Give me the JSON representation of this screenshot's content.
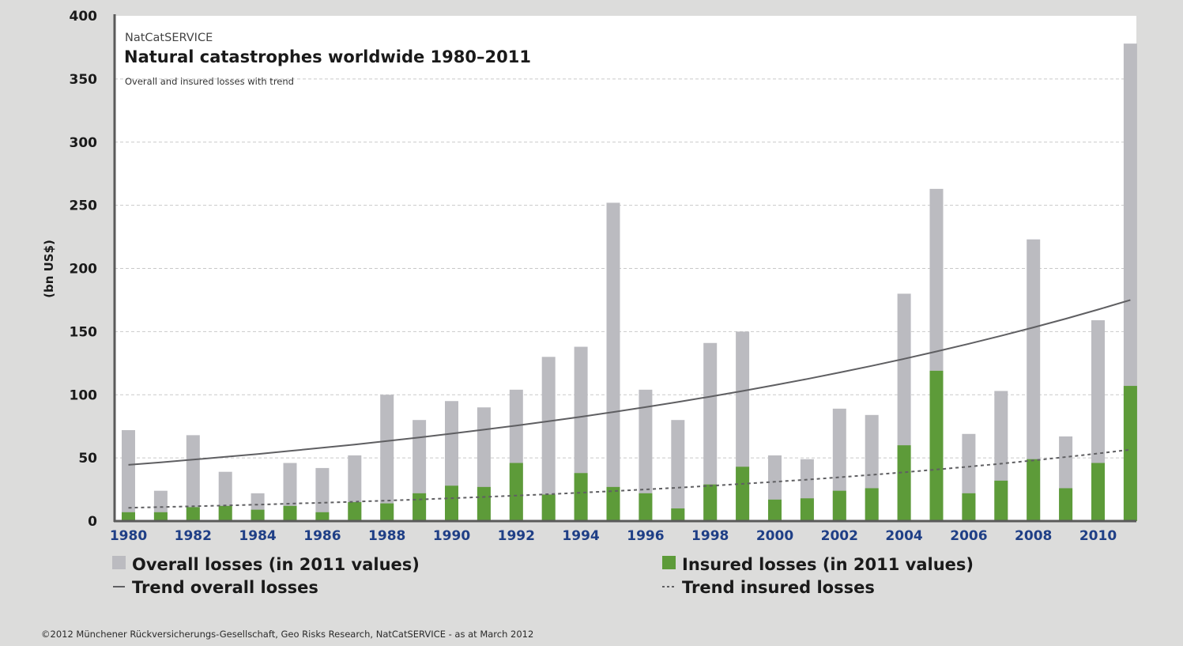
{
  "chart_data": {
    "type": "bar",
    "source_label": "NatCatSERVICE",
    "title": "Natural catastrophes worldwide 1980–2011",
    "subtitle": "Overall and insured losses with trend",
    "ylabel": "(bn US$)",
    "xlabel": "",
    "ylim": [
      0,
      400
    ],
    "yticks": [
      0,
      50,
      100,
      150,
      200,
      250,
      300,
      350,
      400
    ],
    "grid": true,
    "grid_style": "dashed",
    "legend_position": "bottom",
    "x": [
      1980,
      1981,
      1982,
      1983,
      1984,
      1985,
      1986,
      1987,
      1988,
      1989,
      1990,
      1991,
      1992,
      1993,
      1994,
      1995,
      1996,
      1997,
      1998,
      1999,
      2000,
      2001,
      2002,
      2003,
      2004,
      2005,
      2006,
      2007,
      2008,
      2009,
      2010,
      2011
    ],
    "x_tick_labels": [
      "1980",
      "1982",
      "1984",
      "1986",
      "1988",
      "1990",
      "1992",
      "1994",
      "1996",
      "1998",
      "2000",
      "2002",
      "2004",
      "2006",
      "2008",
      "2010"
    ],
    "series": [
      {
        "name": "Overall losses (in 2011 values)",
        "kind": "bar",
        "color": "#bbbbc0",
        "values": [
          72,
          24,
          68,
          39,
          22,
          46,
          42,
          52,
          100,
          80,
          95,
          90,
          104,
          130,
          138,
          252,
          104,
          80,
          141,
          150,
          52,
          49,
          89,
          84,
          180,
          263,
          69,
          103,
          223,
          67,
          159,
          378
        ]
      },
      {
        "name": "Insured losses (in 2011 values)",
        "kind": "bar",
        "color": "#5d9b39",
        "values": [
          7,
          7,
          11,
          12,
          9,
          12,
          7,
          15,
          14,
          22,
          28,
          27,
          46,
          21,
          38,
          27,
          22,
          10,
          29,
          43,
          17,
          18,
          24,
          26,
          60,
          119,
          22,
          32,
          49,
          26,
          46,
          107
        ]
      },
      {
        "name": "Trend overall losses",
        "kind": "line",
        "style": "solid",
        "color": "#5f5f62",
        "values": [
          44.5,
          46.7,
          49.0,
          51.4,
          54.0,
          56.6,
          59.4,
          62.3,
          65.4,
          68.6,
          72.0,
          75.6,
          79.3,
          83.2,
          87.3,
          91.6,
          96.1,
          100.8,
          105.8,
          111.0,
          116.5,
          122.2,
          128.2,
          134.5,
          141.1,
          148.0,
          155.3,
          162.9,
          170.9,
          179.3,
          188.1,
          175.0
        ]
      },
      {
        "name": "Trend insured losses",
        "kind": "line",
        "style": "dashed",
        "color": "#5f5f62",
        "values": [
          10.5,
          11.0,
          11.6,
          12.2,
          12.9,
          13.6,
          14.3,
          15.1,
          15.9,
          16.8,
          17.7,
          18.7,
          19.7,
          20.8,
          21.9,
          23.1,
          24.4,
          25.7,
          27.1,
          28.6,
          30.1,
          31.8,
          33.5,
          35.3,
          37.2,
          39.3,
          41.4,
          43.7,
          46.0,
          48.5,
          51.2,
          56.5
        ]
      }
    ],
    "legend": [
      {
        "label": "Overall losses (in 2011 values)",
        "marker": "square",
        "color": "#bbbbc0"
      },
      {
        "label": "Insured losses (in 2011 values)",
        "marker": "square",
        "color": "#5d9b39"
      },
      {
        "label": "Trend overall losses",
        "marker": "solid-line",
        "color": "#5f5f62"
      },
      {
        "label": "Trend insured losses",
        "marker": "dotted-line",
        "color": "#5f5f62"
      }
    ],
    "footnote": "©2012 Münchener Rückversicherungs-Gesellschaft, Geo Risks Research, NatCatSERVICE - as at March 2012"
  }
}
